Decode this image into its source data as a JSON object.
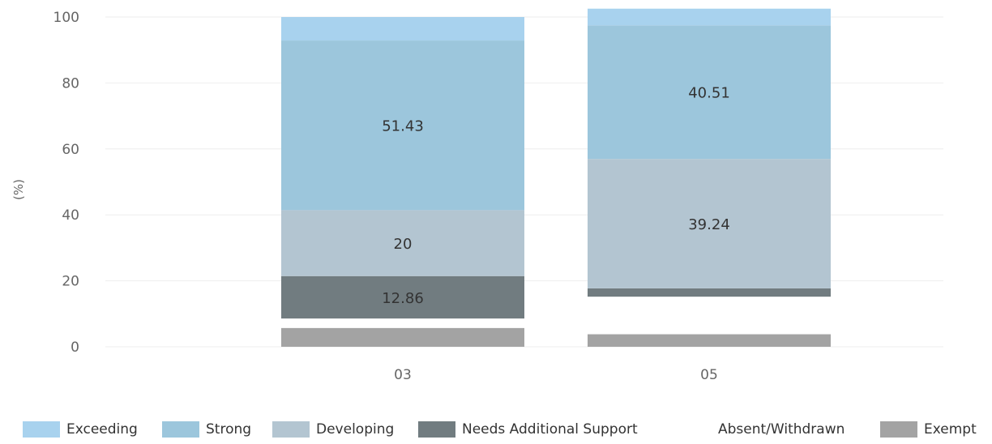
{
  "chart_data": {
    "type": "bar",
    "stacked": true,
    "ylabel": "(%)",
    "xlabel": "",
    "ylim": [
      0,
      100
    ],
    "yticks": [
      0,
      20,
      40,
      60,
      80,
      100
    ],
    "grid": true,
    "legend_position": "bottom",
    "categories": [
      "03",
      "05"
    ],
    "series": [
      {
        "name": "Exempt",
        "color": "#a3a3a3",
        "values": [
          5.71,
          3.8
        ],
        "show_labels": [
          false,
          false
        ]
      },
      {
        "name": "Absent/Withdrawn",
        "color": "#ffffff",
        "values": [
          2.86,
          11.39
        ],
        "show_labels": [
          false,
          false
        ]
      },
      {
        "name": "Needs Additional Support",
        "color": "#717c80",
        "values": [
          12.86,
          2.53
        ],
        "show_labels": [
          true,
          false
        ]
      },
      {
        "name": "Developing",
        "color": "#b3c5d1",
        "values": [
          20,
          39.24
        ],
        "show_labels": [
          true,
          true
        ]
      },
      {
        "name": "Strong",
        "color": "#9cc6dc",
        "values": [
          51.43,
          40.51
        ],
        "show_labels": [
          true,
          true
        ]
      },
      {
        "name": "Exceeding",
        "color": "#a8d2ee",
        "values": [
          7.14,
          5.06
        ],
        "show_labels": [
          false,
          false
        ]
      }
    ],
    "legend_order": [
      "Exceeding",
      "Strong",
      "Developing",
      "Needs Additional Support",
      "Absent/Withdrawn",
      "Exempt"
    ]
  }
}
